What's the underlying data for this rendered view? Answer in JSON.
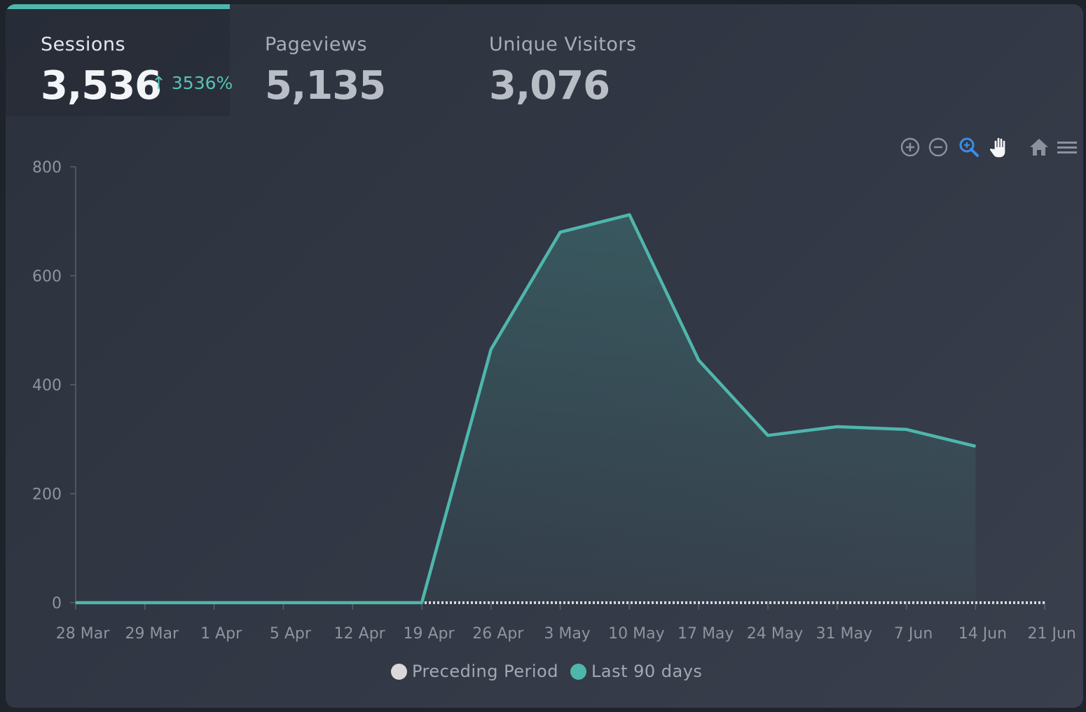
{
  "tabs": [
    {
      "label": "Sessions",
      "value": "3,536",
      "change": "↑ 3536%"
    },
    {
      "label": "Pageviews",
      "value": "5,135"
    },
    {
      "label": "Unique Visitors",
      "value": "3,076"
    }
  ],
  "toolbar": {
    "icons": [
      "zoom-in-icon",
      "zoom-out-icon",
      "zoom-selection-icon",
      "pan-hand-icon",
      "reset-home-icon",
      "menu-icon"
    ]
  },
  "colors": {
    "accent": "#4fb6ac",
    "preceding": "#d9d9d9",
    "zoom_active": "#3b8ee8"
  },
  "legend": [
    {
      "label": "Preceding Period",
      "color": "#d9d9d9"
    },
    {
      "label": "Last 90 days",
      "color": "#4fb6ac"
    }
  ],
  "chart_data": {
    "type": "area",
    "categories": [
      "28 Mar",
      "29 Mar",
      "1 Apr",
      "5 Apr",
      "12 Apr",
      "19 Apr",
      "26 Apr",
      "3 May",
      "10 May",
      "17 May",
      "24 May",
      "31 May",
      "7 Jun",
      "14 Jun",
      "21 Jun"
    ],
    "ylim": [
      0,
      800
    ],
    "yticks": [
      "0",
      "200",
      "400",
      "600",
      "800"
    ],
    "series": [
      {
        "name": "Preceding Period",
        "style": "dotted",
        "values": [
          0,
          0,
          0,
          0,
          0,
          0,
          0,
          0,
          0,
          0,
          0,
          0,
          0,
          0,
          0
        ]
      },
      {
        "name": "Last 90 days",
        "style": "area",
        "values": [
          0,
          0,
          0,
          0,
          0,
          0,
          465,
          680,
          712,
          445,
          307,
          323,
          318,
          287,
          null
        ]
      }
    ],
    "legend_position": "bottom",
    "grid": false
  }
}
